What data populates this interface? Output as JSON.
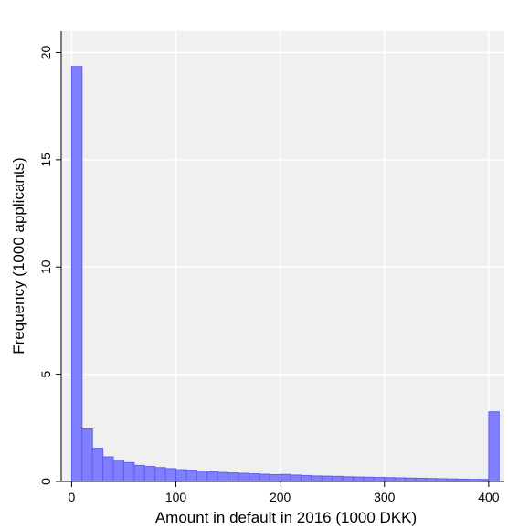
{
  "chart_data": {
    "type": "bar",
    "title": "",
    "xlabel": "Amount in default in 2016 (1000 DKK)",
    "ylabel": "Frequency (1000 applicants)",
    "xlim": [
      -10,
      415
    ],
    "ylim": [
      0,
      21
    ],
    "x_ticks": [
      0,
      100,
      200,
      300,
      400
    ],
    "y_ticks": [
      0,
      5,
      10,
      15,
      20
    ],
    "grid": true,
    "bin_width": 10,
    "bin_starts": [
      0,
      10,
      20,
      30,
      40,
      50,
      60,
      70,
      80,
      90,
      100,
      110,
      120,
      130,
      140,
      150,
      160,
      170,
      180,
      190,
      200,
      210,
      220,
      230,
      240,
      250,
      260,
      270,
      280,
      290,
      300,
      310,
      320,
      330,
      340,
      350,
      360,
      370,
      380,
      390,
      400
    ],
    "values": [
      19.35,
      2.45,
      1.55,
      1.15,
      1.0,
      0.88,
      0.75,
      0.7,
      0.65,
      0.6,
      0.55,
      0.53,
      0.48,
      0.45,
      0.42,
      0.4,
      0.38,
      0.36,
      0.34,
      0.32,
      0.33,
      0.3,
      0.28,
      0.26,
      0.25,
      0.24,
      0.22,
      0.21,
      0.2,
      0.19,
      0.18,
      0.17,
      0.16,
      0.15,
      0.14,
      0.13,
      0.12,
      0.11,
      0.1,
      0.1,
      3.25
    ],
    "bar_color": "#7f7fff",
    "bar_edge_color": "#5f5fef",
    "plot_bg": "#f0f0f0",
    "grid_color": "#ffffff"
  }
}
